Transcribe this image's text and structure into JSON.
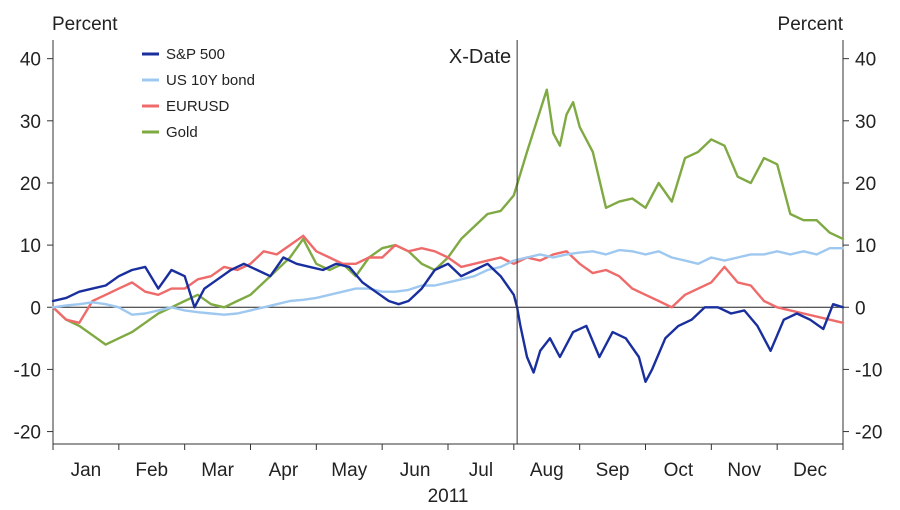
{
  "chart_data": {
    "type": "line",
    "ylabel_left": "Percent",
    "ylabel_right": "Percent",
    "xlabel": "2011",
    "ylim": [
      -22,
      43
    ],
    "yticks": [
      -20,
      -10,
      0,
      10,
      20,
      30,
      40
    ],
    "ytick_labels": [
      "-20",
      "-10",
      "0",
      "10",
      "20",
      "30",
      "40"
    ],
    "months": [
      "Jan",
      "Feb",
      "Mar",
      "Apr",
      "May",
      "Jun",
      "Jul",
      "Aug",
      "Sep",
      "Oct",
      "Nov",
      "Dec"
    ],
    "annotation": {
      "label": "X-Date",
      "x": 7.05
    },
    "legend_position": "top-left",
    "grid": false,
    "x_unit": "month index (0 = start of Jan 2011, 12 = end of Dec 2011)",
    "series": [
      {
        "name": "S&P 500",
        "color": "#1a2f9e",
        "x": [
          0,
          0.2,
          0.4,
          0.6,
          0.8,
          1.0,
          1.2,
          1.4,
          1.6,
          1.8,
          2.0,
          2.15,
          2.3,
          2.5,
          2.7,
          2.9,
          3.1,
          3.3,
          3.5,
          3.7,
          3.9,
          4.1,
          4.3,
          4.5,
          4.7,
          4.9,
          5.1,
          5.25,
          5.4,
          5.6,
          5.8,
          6.0,
          6.2,
          6.4,
          6.6,
          6.8,
          7.0,
          7.05,
          7.1,
          7.2,
          7.3,
          7.4,
          7.55,
          7.7,
          7.9,
          8.1,
          8.3,
          8.5,
          8.7,
          8.9,
          9.0,
          9.1,
          9.3,
          9.5,
          9.7,
          9.9,
          10.1,
          10.3,
          10.5,
          10.7,
          10.9,
          11.1,
          11.3,
          11.5,
          11.7,
          11.85,
          12.0
        ],
        "y": [
          1,
          1.5,
          2.5,
          3,
          3.5,
          5,
          6,
          6.5,
          3,
          6,
          5,
          0,
          3,
          4.5,
          6,
          7,
          6,
          5,
          8,
          7,
          6.5,
          6,
          7,
          6.5,
          4,
          2.5,
          1,
          0.5,
          1,
          3,
          6,
          7,
          5,
          6,
          7,
          5,
          2,
          0,
          -3,
          -8,
          -10.5,
          -7,
          -5,
          -8,
          -4,
          -3,
          -8,
          -4,
          -5,
          -8,
          -12,
          -10,
          -5,
          -3,
          -2,
          0,
          0,
          -1,
          -0.5,
          -3,
          -7,
          -2,
          -1,
          -2,
          -3.5,
          0.5,
          0
        ]
      },
      {
        "name": "US 10Y bond",
        "color": "#9ec8ef",
        "x": [
          0,
          0.2,
          0.4,
          0.6,
          0.8,
          1.0,
          1.2,
          1.4,
          1.6,
          1.8,
          2.0,
          2.2,
          2.4,
          2.6,
          2.8,
          3.0,
          3.2,
          3.4,
          3.6,
          3.8,
          4.0,
          4.2,
          4.4,
          4.6,
          4.8,
          5.0,
          5.2,
          5.4,
          5.6,
          5.8,
          6.0,
          6.2,
          6.4,
          6.6,
          6.8,
          7.0,
          7.2,
          7.4,
          7.6,
          7.8,
          8.0,
          8.2,
          8.4,
          8.6,
          8.8,
          9.0,
          9.2,
          9.4,
          9.6,
          9.8,
          10.0,
          10.2,
          10.4,
          10.6,
          10.8,
          11.0,
          11.2,
          11.4,
          11.6,
          11.8,
          12.0
        ],
        "y": [
          0,
          0.3,
          0.5,
          0.8,
          0.5,
          0,
          -1.2,
          -1,
          -0.5,
          0,
          -0.5,
          -0.8,
          -1,
          -1.2,
          -1,
          -0.5,
          0,
          0.5,
          1,
          1.2,
          1.5,
          2,
          2.5,
          3,
          3,
          2.5,
          2.5,
          2.8,
          3.5,
          3.5,
          4,
          4.5,
          5,
          6,
          6.5,
          7.5,
          8,
          8.5,
          8,
          8.5,
          8.8,
          9,
          8.5,
          9.2,
          9,
          8.5,
          9,
          8,
          7.5,
          7,
          8,
          7.5,
          8,
          8.5,
          8.5,
          9,
          8.5,
          9,
          8.5,
          9.5,
          9.5
        ]
      },
      {
        "name": "EURUSD",
        "color": "#ef6b6b",
        "x": [
          0,
          0.2,
          0.4,
          0.6,
          0.8,
          1.0,
          1.2,
          1.4,
          1.6,
          1.8,
          2.0,
          2.2,
          2.4,
          2.6,
          2.8,
          3.0,
          3.2,
          3.4,
          3.6,
          3.8,
          4.0,
          4.2,
          4.4,
          4.6,
          4.8,
          5.0,
          5.2,
          5.4,
          5.6,
          5.8,
          6.0,
          6.2,
          6.4,
          6.6,
          6.8,
          7.0,
          7.2,
          7.4,
          7.6,
          7.8,
          8.0,
          8.2,
          8.4,
          8.6,
          8.8,
          9.0,
          9.2,
          9.4,
          9.6,
          9.8,
          10.0,
          10.2,
          10.4,
          10.6,
          10.8,
          11.0,
          11.2,
          11.4,
          11.6,
          11.8,
          12.0
        ],
        "y": [
          0,
          -2,
          -2.5,
          1,
          2,
          3,
          4,
          2.5,
          2,
          3,
          3,
          4.5,
          5,
          6.5,
          6,
          7,
          9,
          8.5,
          10,
          11.5,
          9,
          8,
          7,
          7,
          8,
          8,
          10,
          9,
          9.5,
          9,
          8,
          6.5,
          7,
          7.5,
          8,
          7,
          8,
          7.5,
          8.5,
          9,
          7,
          5.5,
          6,
          5,
          3,
          2,
          1,
          0,
          2,
          3,
          4,
          6.5,
          4,
          3.5,
          1,
          0,
          -0.5,
          -1,
          -1.5,
          -2,
          -2.5
        ]
      },
      {
        "name": "Gold",
        "color": "#7faa43",
        "x": [
          0,
          0.2,
          0.4,
          0.6,
          0.8,
          1.0,
          1.2,
          1.4,
          1.6,
          1.8,
          2.0,
          2.2,
          2.4,
          2.6,
          2.8,
          3.0,
          3.2,
          3.4,
          3.6,
          3.8,
          4.0,
          4.2,
          4.4,
          4.6,
          4.8,
          5.0,
          5.2,
          5.4,
          5.6,
          5.8,
          6.0,
          6.2,
          6.4,
          6.6,
          6.8,
          7.0,
          7.2,
          7.35,
          7.5,
          7.6,
          7.7,
          7.8,
          7.9,
          8.0,
          8.2,
          8.4,
          8.6,
          8.8,
          9.0,
          9.2,
          9.4,
          9.6,
          9.8,
          10.0,
          10.2,
          10.4,
          10.6,
          10.8,
          11.0,
          11.2,
          11.4,
          11.6,
          11.8,
          12.0
        ],
        "y": [
          0,
          -2,
          -3,
          -4.5,
          -6,
          -5,
          -4,
          -2.5,
          -1,
          0,
          1,
          2,
          0.5,
          0,
          1,
          2,
          4,
          6,
          8,
          11,
          7,
          6,
          7,
          5,
          8,
          9.5,
          10,
          9,
          7,
          6,
          8,
          11,
          13,
          15,
          15.5,
          18,
          25,
          30,
          35,
          28,
          26,
          31,
          33,
          29,
          25,
          16,
          17,
          17.5,
          16,
          20,
          17,
          24,
          25,
          27,
          26,
          21,
          20,
          24,
          23,
          15,
          14,
          14,
          12,
          11
        ]
      }
    ]
  }
}
